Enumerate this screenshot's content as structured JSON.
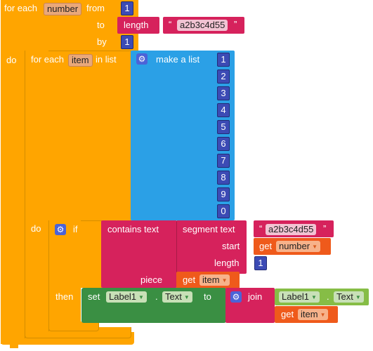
{
  "outer_loop": {
    "for_each_label": "for each",
    "var_name": "number",
    "from_label": "from",
    "from_value": "1",
    "to_label": "to",
    "length_label": "length",
    "string_value": "a2b3c4d55",
    "by_label": "by",
    "by_value": "1",
    "do_label": "do"
  },
  "inner_loop": {
    "for_each_label": "for each",
    "var_name": "item",
    "in_list_label": "in list",
    "make_list_label": "make a list",
    "items": [
      "1",
      "2",
      "3",
      "4",
      "5",
      "6",
      "7",
      "8",
      "9",
      "0"
    ],
    "do_label": "do"
  },
  "if_block": {
    "if_label": "if",
    "contains_label": "contains text",
    "segment_label": "segment text",
    "segment_string": "a2b3c4d55",
    "start_label": "start",
    "get_label": "get",
    "start_var": "number",
    "length_label": "length",
    "length_value": "1",
    "piece_label": "piece",
    "piece_var": "item",
    "then_label": "then"
  },
  "set_block": {
    "set_label": "set",
    "component": "Label1",
    "property": "Text",
    "to_label": "to",
    "join_label": "join",
    "join_component": "Label1",
    "join_property": "Text",
    "get_label": "get",
    "join_var": "item"
  },
  "quote_open": "“",
  "quote_close": "”",
  "dot": "."
}
